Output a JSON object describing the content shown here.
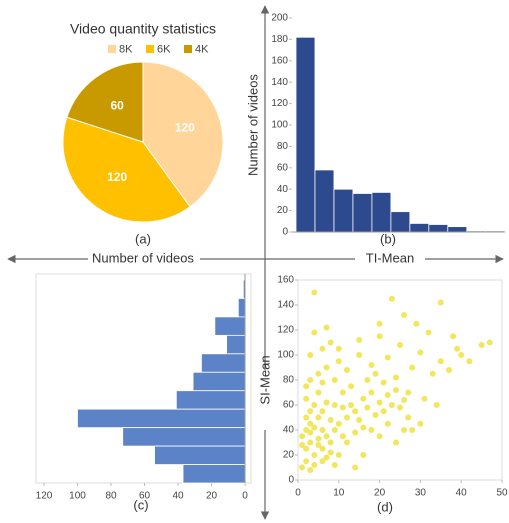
{
  "axes": {
    "left_label": "Number of videos",
    "right_label": "TI-Mean"
  },
  "chart_data": [
    {
      "type": "pie",
      "label": "(a)",
      "title": "Video quantity statistics",
      "categories": [
        "8K",
        "6K",
        "4K"
      ],
      "values": [
        120,
        120,
        60
      ],
      "colors": [
        "#ffd59a",
        "#ffc000",
        "#c99a00"
      ],
      "legend": "top"
    },
    {
      "type": "bar",
      "label": "(b)",
      "ylabel": "Number of videos",
      "categories": [
        null,
        null,
        null,
        null,
        null,
        null,
        null,
        null,
        null,
        null,
        null
      ],
      "values": [
        182,
        58,
        40,
        36,
        37,
        19,
        8,
        7,
        5,
        1,
        1
      ],
      "color": "#2e4a8e",
      "ylim": [
        0,
        200
      ],
      "yticks": [
        0,
        20,
        40,
        60,
        80,
        100,
        120,
        140,
        160,
        180,
        200
      ]
    },
    {
      "type": "bar",
      "orientation": "horizontal",
      "label": "(c)",
      "categories": [
        null,
        null,
        null,
        null,
        null,
        null,
        null,
        null,
        null,
        null,
        null
      ],
      "values": [
        1,
        4,
        18,
        11,
        26,
        31,
        41,
        100,
        73,
        54,
        37
      ],
      "color": "#5c82c8",
      "xlim": [
        120,
        0
      ],
      "xticks": [
        120,
        100,
        80,
        60,
        40,
        20,
        0
      ]
    },
    {
      "type": "scatter",
      "label": "(d)",
      "ylabel": "SI-Mean",
      "color": "#f2e65c",
      "x": [
        1,
        2,
        2,
        3,
        1,
        2,
        3,
        4,
        5,
        3,
        4,
        2,
        5,
        6,
        7,
        4,
        3,
        6,
        8,
        5,
        6,
        7,
        8,
        9,
        10,
        2,
        1,
        3,
        4,
        5,
        6,
        7,
        8,
        9,
        10,
        11,
        12,
        13,
        14,
        15,
        16,
        17,
        18,
        19,
        20,
        21,
        22,
        23,
        24,
        25,
        26,
        27,
        28,
        30,
        12,
        14,
        16,
        18,
        20,
        22,
        24,
        26,
        5,
        7,
        9,
        3,
        6,
        8,
        4,
        7,
        10,
        12,
        15,
        18,
        20,
        22,
        25,
        28,
        30,
        32,
        35,
        38,
        40,
        42,
        45,
        47,
        37,
        33,
        29,
        35,
        23,
        20,
        26,
        4,
        15,
        10,
        2,
        3,
        6,
        11,
        13,
        17,
        19,
        21,
        24,
        27,
        31,
        34,
        39,
        16,
        14,
        9,
        11
      ],
      "y": [
        10,
        15,
        25,
        30,
        35,
        40,
        45,
        20,
        28,
        55,
        60,
        65,
        70,
        40,
        35,
        12,
        8,
        15,
        30,
        50,
        55,
        62,
        48,
        40,
        45,
        50,
        28,
        38,
        42,
        33,
        25,
        18,
        22,
        12,
        20,
        35,
        50,
        60,
        55,
        48,
        65,
        58,
        70,
        52,
        62,
        55,
        68,
        60,
        72,
        58,
        64,
        50,
        40,
        45,
        30,
        38,
        42,
        40,
        35,
        45,
        30,
        40,
        85,
        90,
        80,
        100,
        105,
        110,
        118,
        122,
        95,
        88,
        100,
        92,
        115,
        98,
        108,
        90,
        102,
        118,
        95,
        115,
        100,
        95,
        108,
        110,
        88,
        85,
        125,
        142,
        145,
        125,
        132,
        150,
        112,
        105,
        75,
        80,
        78,
        70,
        75,
        80,
        85,
        78,
        82,
        70,
        65,
        60,
        105,
        20,
        10,
        60,
        58
      ],
      "xlim": [
        0,
        50
      ],
      "xticks": [
        0,
        10,
        20,
        30,
        40,
        50
      ],
      "ylim": [
        0,
        160
      ],
      "yticks": [
        0,
        20,
        40,
        60,
        80,
        100,
        120,
        140,
        160
      ]
    }
  ]
}
